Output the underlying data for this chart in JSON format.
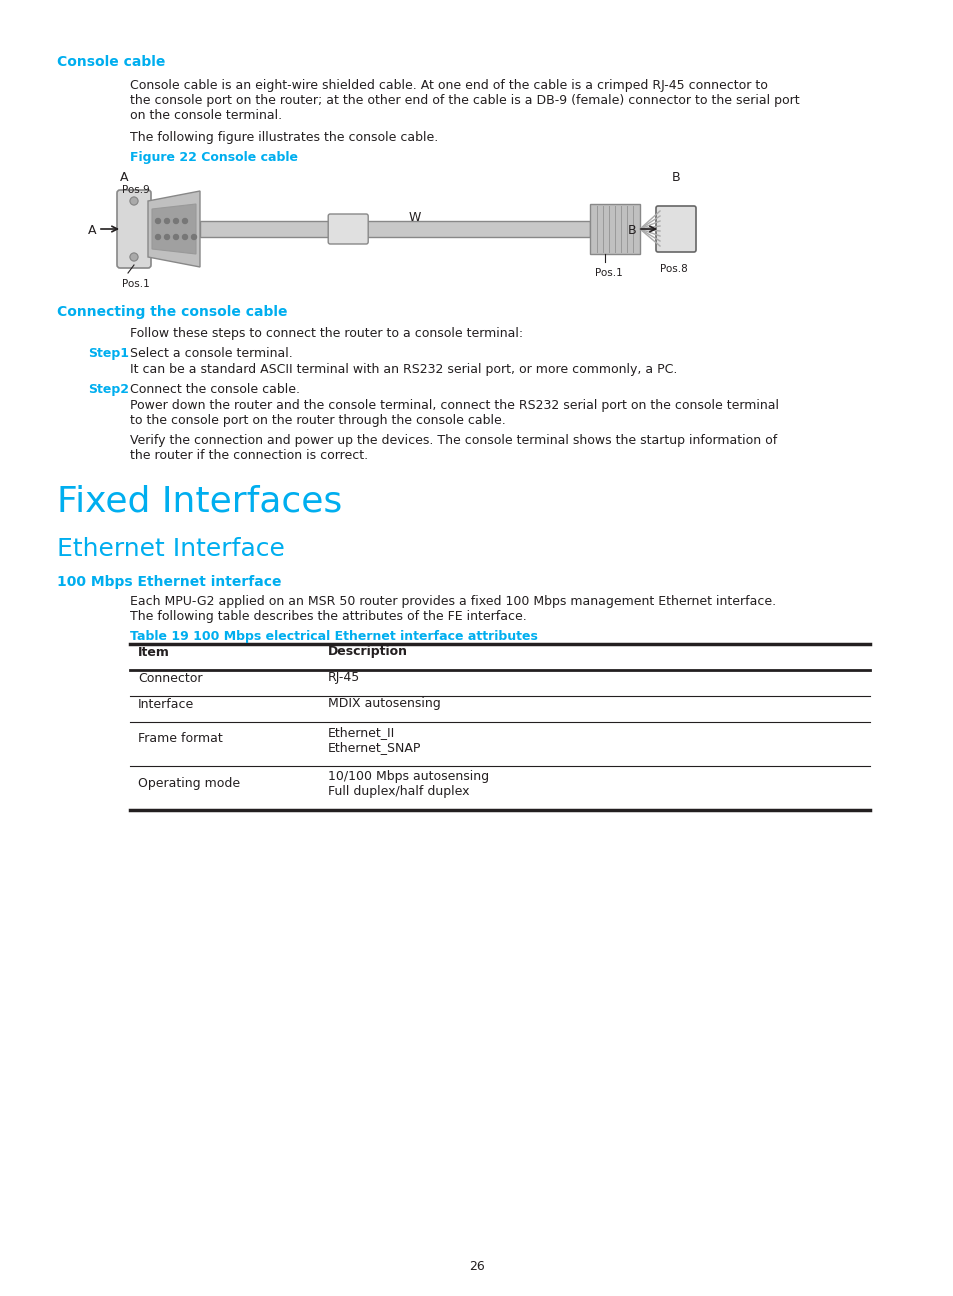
{
  "bg_color": "#ffffff",
  "cyan_color": "#00AEEF",
  "black_color": "#231F20",
  "page_number": "26",
  "section1_heading": "Console cable",
  "section1_para1_l1": "Console cable is an eight-wire shielded cable. At one end of the cable is a crimped RJ-45 connector to",
  "section1_para1_l2": "the console port on the router; at the other end of the cable is a DB-9 (female) connector to the serial port",
  "section1_para1_l3": "on the console terminal.",
  "section1_para2": "The following figure illustrates the console cable.",
  "figure_caption": "Figure 22 Console cable",
  "section2_heading": "Connecting the console cable",
  "section2_intro": "Follow these steps to connect the router to a console terminal:",
  "step1_label": "Step1",
  "step1_text": "Select a console terminal.",
  "step1_desc": "It can be a standard ASCII terminal with an RS232 serial port, or more commonly, a PC.",
  "step2_label": "Step2",
  "step2_text": "Connect the console cable.",
  "step2_desc1_l1": "Power down the router and the console terminal, connect the RS232 serial port on the console terminal",
  "step2_desc1_l2": "to the console port on the router through the console cable.",
  "step2_desc2_l1": "Verify the connection and power up the devices. The console terminal shows the startup information of",
  "step2_desc2_l2": "the router if the connection is correct.",
  "section3_heading": "Fixed Interfaces",
  "section4_heading": "Ethernet Interface",
  "section5_heading": "100 Mbps Ethernet interface",
  "section5_para_l1": "Each MPU-G2 applied on an MSR 50 router provides a fixed 100 Mbps management Ethernet interface.",
  "section5_para_l2": "The following table describes the attributes of the FE interface.",
  "table_caption": "Table 19 100 Mbps electrical Ethernet interface attributes",
  "table_headers": [
    "Item",
    "Description"
  ],
  "table_rows": [
    [
      "Connector",
      "RJ-45"
    ],
    [
      "Interface",
      "MDIX autosensing"
    ],
    [
      "Frame format",
      "Ethernet_II\nEthernet_SNAP"
    ],
    [
      "Operating mode",
      "10/100 Mbps autosensing\nFull duplex/half duplex"
    ]
  ]
}
